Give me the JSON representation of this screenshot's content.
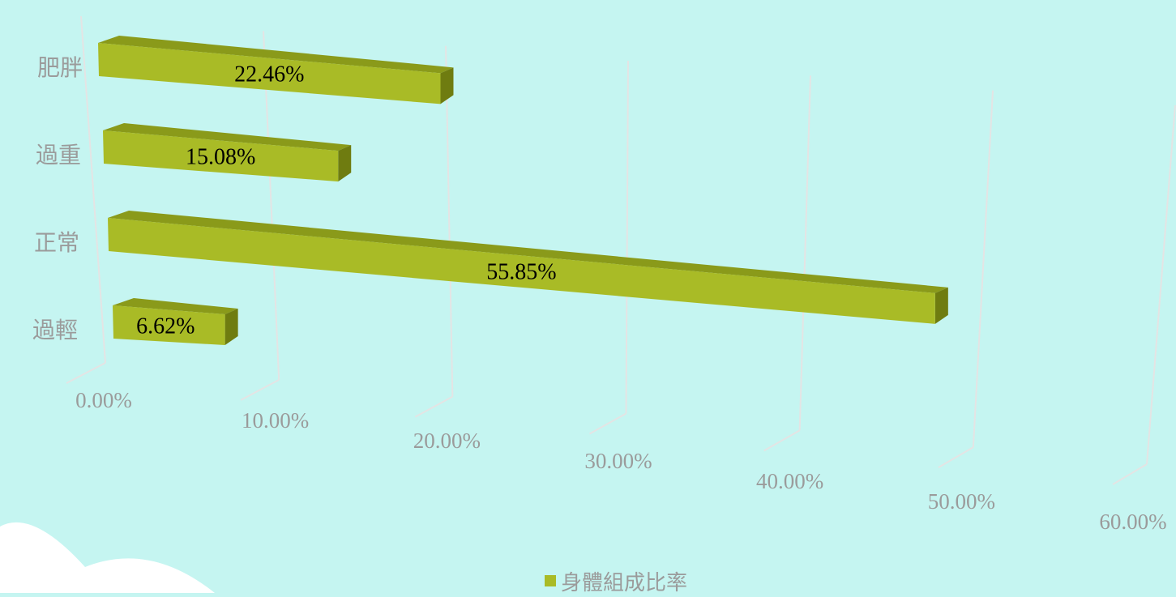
{
  "chart_data": {
    "type": "bar",
    "orientation": "horizontal",
    "three_d": true,
    "categories": [
      "肥胖",
      "過重",
      "正常",
      "過輕"
    ],
    "series": [
      {
        "name": "身體組成比率",
        "values": [
          22.46,
          15.08,
          55.85,
          6.62
        ],
        "data_labels": [
          "22.46%",
          "15.08%",
          "55.85%",
          "6.62%"
        ]
      }
    ],
    "x_ticks": [
      "0.00%",
      "10.00%",
      "20.00%",
      "30.00%",
      "40.00%",
      "50.00%",
      "60.00%"
    ],
    "xlim": [
      0,
      60
    ],
    "grid": true,
    "legend_position": "bottom"
  },
  "colors": {
    "background": "#c5f5f1",
    "bar_front": "#a9bb26",
    "bar_top": "#8a9a1a",
    "bar_side": "#6f7c10",
    "gridline": "#e4e4e4",
    "axis_text": "#9b9b9b",
    "label_text": "#000000"
  }
}
